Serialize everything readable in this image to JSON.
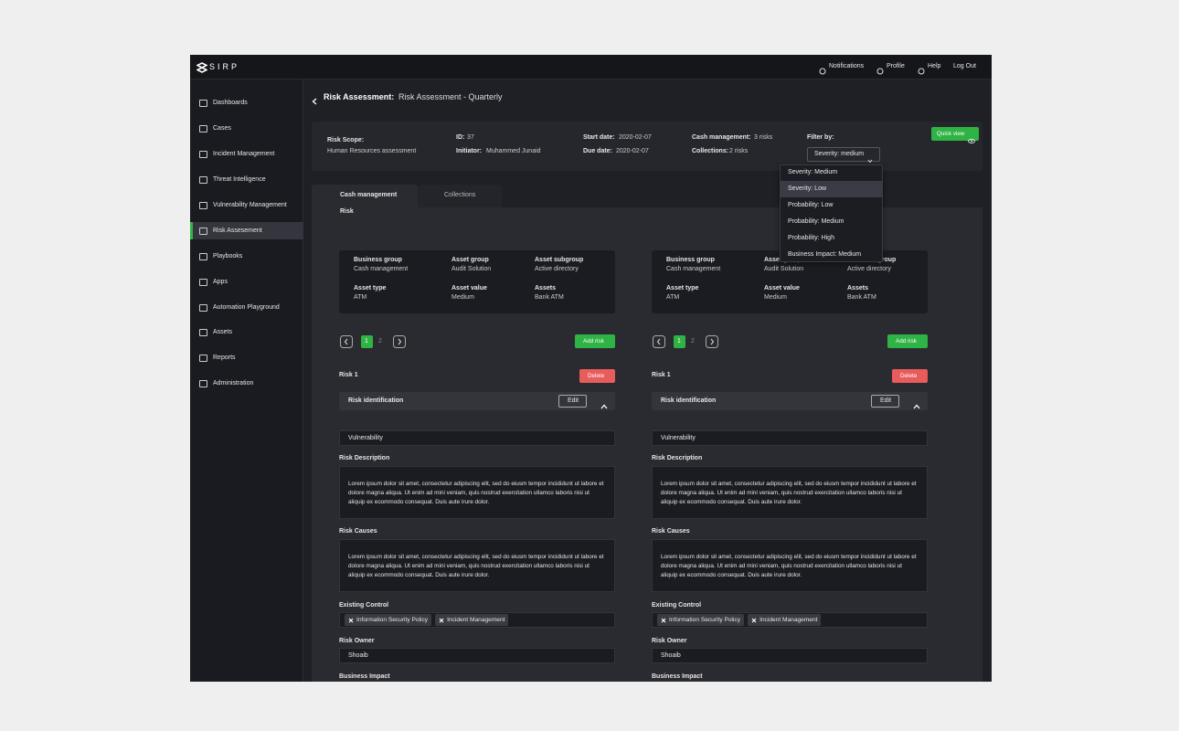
{
  "brand": "SIRP",
  "topnav": [
    "Notifications",
    "Profile",
    "Help",
    "Log Out"
  ],
  "sidebar": [
    "Dashboards",
    "Cases",
    "Incident Management",
    "Threat Intelligence",
    "Vulnerability Management",
    "Risk Assesement",
    "Playbooks",
    "Apps",
    "Automation Playground",
    "Assets",
    "Reports",
    "Administration"
  ],
  "header": {
    "section": "Risk Assessment:",
    "title": "Risk Assessment - Quarterly"
  },
  "summary": {
    "scope_label": "Risk Scope:",
    "scope": "Human Resources assessment",
    "id_label": "ID:",
    "id": "37",
    "initiator_label": "Initiator:",
    "initiator": "Muhammed Junaid",
    "start_label": "Start date:",
    "start": "2020-02-07",
    "due_label": "Due date:",
    "due": "2020-02-07",
    "cash_label": "Cash management:",
    "cash": "3 risks",
    "collections_label": "Collections:",
    "collections": "2 risks",
    "filter_label": "Filter by:",
    "filter": "Severity: medium",
    "quick_view": "Quick view"
  },
  "filter_options": [
    "Severity: Medium",
    "Severity: Low",
    "Probability: Low",
    "Probability: Medium",
    "Probability: High",
    "Business Impact: Medium"
  ],
  "tabs": [
    "Cash management",
    "Collections"
  ],
  "section_label": "Risk",
  "panels": [
    {
      "info": [
        {
          "label": "Business group",
          "value": "Cash management"
        },
        {
          "label": "Asset group",
          "value": "Audit Solution"
        },
        {
          "label": "Asset subgroup",
          "value": "Active directory"
        },
        {
          "label": "Asset type",
          "value": "ATM"
        },
        {
          "label": "Asset value",
          "value": "Medium"
        },
        {
          "label": "Assets",
          "value": "Bank ATM"
        }
      ],
      "pages": [
        "1",
        "2"
      ],
      "add_risk": "Add risk",
      "risk_title": "Risk 1",
      "delete": "Delete",
      "accordion": "Risk identification",
      "edit": "Edit",
      "vulnerability": "Vulnerability",
      "desc_label": "Risk Description",
      "desc": "Lorem ipsum dolor sit amet, consectetur adipiscing elit, sed do eiusm tempor incididunt ut labore et dolore magna aliqua. Ut enim ad mini veniam, quis nostrud exercitation ullamco laboris nisi ut aliquip ex ecommodo consequat. Duis aute irure dolor.",
      "causes_label": "Risk Causes",
      "causes": "Lorem ipsum dolor sit amet, consectetur adipiscing elit, sed do eiusm tempor incididunt ut labore et dolore magna aliqua. Ut enim ad mini veniam, quis nostrud exercitation ullamco laboris nisi ut aliquip ex ecommodo consequat. Duis aute irure dolor.",
      "control_label": "Existing Control",
      "controls": [
        "Information Security Policy",
        "Incident Management"
      ],
      "owner_label": "Risk Owner",
      "owner": "Shoaib",
      "impact_label": "Business Impact"
    },
    {
      "info": [
        {
          "label": "Business group",
          "value": "Cash management"
        },
        {
          "label": "Asset group",
          "value": "Audit Solution"
        },
        {
          "label": "Asset subgroup",
          "value": "Active directory"
        },
        {
          "label": "Asset type",
          "value": "ATM"
        },
        {
          "label": "Asset value",
          "value": "Medium"
        },
        {
          "label": "Assets",
          "value": "Bank ATM"
        }
      ],
      "pages": [
        "1",
        "2"
      ],
      "add_risk": "Add risk",
      "risk_title": "Risk 1",
      "delete": "Delete",
      "accordion": "Risk identification",
      "edit": "Edit",
      "vulnerability": "Vulnerability",
      "desc_label": "Risk Description",
      "desc": "Lorem ipsum dolor sit amet, consectetur adipiscing elit, sed do eiusm tempor incididunt ut labore et dolore magna aliqua. Ut enim ad mini veniam, quis nostrud exercitation ullamco laboris nisi ut aliquip ex ecommodo consequat. Duis aute irure dolor.",
      "causes_label": "Risk Causes",
      "causes": "Lorem ipsum dolor sit amet, consectetur adipiscing elit, sed do eiusm tempor incididunt ut labore et dolore magna aliqua. Ut enim ad mini veniam, quis nostrud exercitation ullamco laboris nisi ut aliquip ex ecommodo consequat. Duis aute irure dolor.",
      "control_label": "Existing Control",
      "controls": [
        "Information Security Policy",
        "Incident Management"
      ],
      "owner_label": "Risk Owner",
      "owner": "Shoaib",
      "impact_label": "Business Impact"
    }
  ]
}
